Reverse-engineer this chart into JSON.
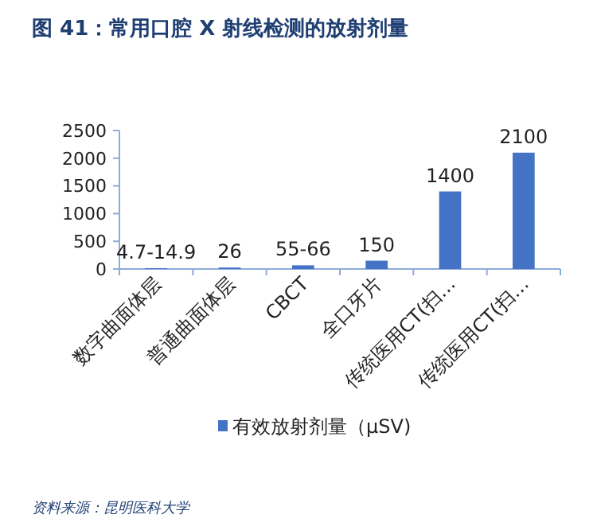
{
  "chart_data": {
    "type": "bar",
    "title": "图 41：常用口腔 X 射线检测的放射剂量",
    "categories": [
      "数字曲面体层",
      "普通曲面体层",
      "CBCT",
      "全口牙片",
      "传统医用CT(扫…",
      "传统医用CT(扫…"
    ],
    "series": [
      {
        "name": "有效放射剂量（μSV)",
        "color": "#4472c4",
        "values": [
          14.9,
          26,
          66,
          150,
          1400,
          2100
        ],
        "value_labels": [
          "4.7-14.9",
          "26",
          "55-66",
          "150",
          "1400",
          "2100"
        ]
      }
    ],
    "ylim": [
      0,
      2500
    ],
    "yticks": [
      0,
      500,
      1000,
      1500,
      2000,
      2500
    ],
    "grid": false,
    "legend": "bottom",
    "annotations": [
      "资料来源：昆明医科大学"
    ]
  }
}
